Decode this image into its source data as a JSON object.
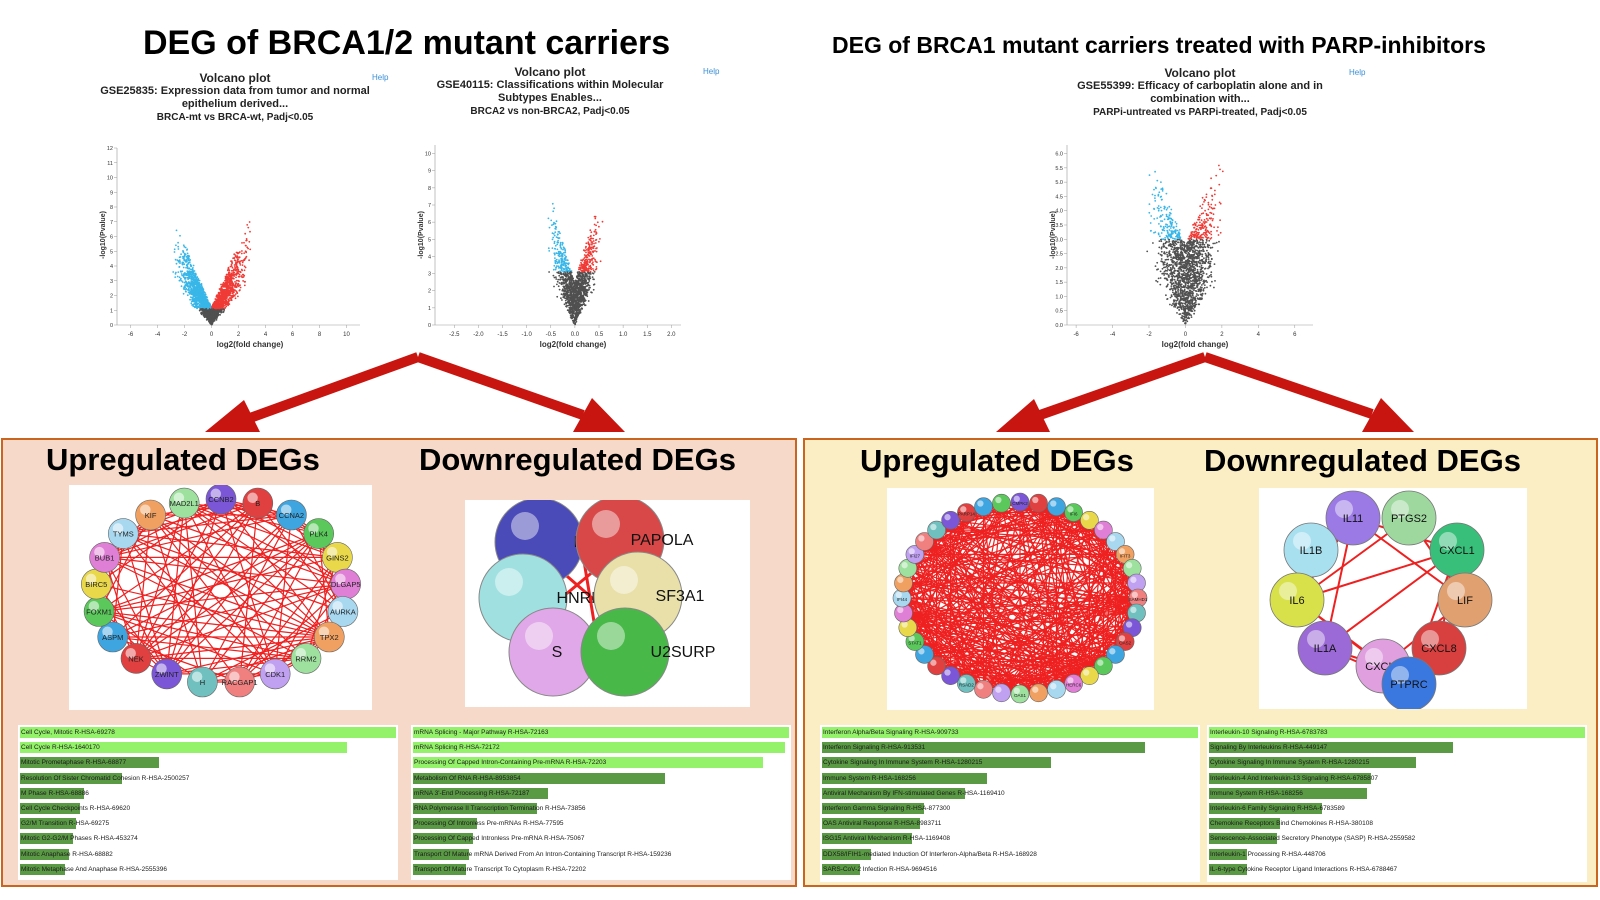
{
  "titles": {
    "left": "DEG of BRCA1/2 mutant carriers",
    "right": "DEG of BRCA1 mutant carriers treated with PARP-inhibitors"
  },
  "volcano_plots": [
    {
      "line1": "Volcano plot",
      "line2": "GSE25835: Expression data from tumor and normal epithelium derived...",
      "line3": "BRCA-mt vs BRCA-wt, Padj<0.05",
      "help": "Help",
      "xlabel": "log2(fold change)",
      "ylabel": "-log10(Pvalue)",
      "xticks": [
        "-6",
        "-4",
        "-2",
        "0",
        "2",
        "4",
        "6",
        "8",
        "10"
      ],
      "yticks": [
        "0",
        "1",
        "2",
        "3",
        "4",
        "5",
        "6",
        "7",
        "8",
        "9",
        "10",
        "11",
        "12"
      ]
    },
    {
      "line1": "Volcano plot",
      "line2": "GSE40115: Classifications within Molecular Subtypes Enables...",
      "line3": "BRCA2 vs non-BRCA2, Padj<0.05",
      "help": "Help",
      "xlabel": "log2(fold change)",
      "ylabel": "-log10(Pvalue)",
      "xticks": [
        "-2.5",
        "-2.0",
        "-1.5",
        "-1.0",
        "-0.5",
        "0.0",
        "0.5",
        "1.0",
        "1.5",
        "2.0"
      ],
      "yticks": [
        "0",
        "1",
        "2",
        "3",
        "4",
        "5",
        "6",
        "7",
        "8",
        "9",
        "10"
      ]
    },
    {
      "line1": "Volcano plot",
      "line2": "GSE55399: Efficacy of carboplatin alone and in combination with...",
      "line3": "PARPi-untreated vs PARPi-treated, Padj<0.05",
      "help": "Help",
      "xlabel": "log2(fold change)",
      "ylabel": "-log10(Pvalue)",
      "xticks": [
        "-6",
        "-4",
        "-2",
        "0",
        "2",
        "4",
        "6"
      ],
      "yticks": [
        "0.0",
        "0.5",
        "1.0",
        "1.5",
        "2.0",
        "2.5",
        "3.0",
        "3.5",
        "4.0",
        "4.5",
        "5.0",
        "5.5",
        "6.0"
      ]
    }
  ],
  "sections": {
    "left": {
      "up": "Upregulated DEGs",
      "down": "Downregulated DEGs"
    },
    "right": {
      "up": "Upregulated DEGs",
      "down": "Downregulated DEGs"
    }
  },
  "networks": {
    "left_up": [
      "CCNB2",
      "B",
      "CCNA2",
      "PLK4",
      "GINS2",
      "DLGAP5",
      "AURKA",
      "TPX2",
      "RRM2",
      "CDK1",
      "RACGAP1",
      "H",
      "ZWINT",
      "NEK",
      "ASPM",
      "FOXM1",
      "BIRC5",
      "BUB1",
      "TYMS",
      "KIF",
      "MAD2L1"
    ],
    "left_down": [
      "P",
      "PAPOLA",
      "HNRNP",
      "SF3A1",
      "S",
      "U2SURP"
    ],
    "right_up": [
      "CMPK2",
      "IFI6",
      "IFIT3",
      "SAMHD1",
      "OAS2",
      "HERC6",
      "OAS1",
      "RSAD2",
      "STAT1",
      "IFI44",
      "IFI27",
      "PARP14"
    ],
    "right_down": [
      "IL11",
      "PTGS2",
      "IL1B",
      "CXCL1",
      "IL6",
      "LIF",
      "IL1A",
      "CXCL8",
      "CXCL2",
      "PTPRC"
    ]
  },
  "colors": {
    "panel_left_bg": "#f6d9c8",
    "panel_right_bg": "#fbeec5",
    "panel_border": "#c9651e",
    "arrow": "#c9150f",
    "volcano_down": "#38b6e8",
    "volcano_up": "#ef3b36",
    "volcano_ns": "#505050",
    "bar_light": "#94f26a",
    "bar_dark": "#5a9a44",
    "edge": "#ee2020"
  },
  "enrichment": {
    "left_up": [
      {
        "label": "Cell Cycle, Mitotic R-HSA-69278",
        "value": 1.0,
        "shade": "light"
      },
      {
        "label": "Cell Cycle R-HSA-1640170",
        "value": 0.87,
        "shade": "light"
      },
      {
        "label": "Mitotic Prometaphase R-HSA-68877",
        "value": 0.37,
        "shade": "dark"
      },
      {
        "label": "Resolution Of Sister Chromatid Cohesion R-HSA-2500257",
        "value": 0.27,
        "shade": "dark"
      },
      {
        "label": "M Phase R-HSA-68886",
        "value": 0.17,
        "shade": "dark"
      },
      {
        "label": "Cell Cycle Checkpoints R-HSA-69620",
        "value": 0.16,
        "shade": "dark"
      },
      {
        "label": "G2/M Transition R-HSA-69275",
        "value": 0.15,
        "shade": "dark"
      },
      {
        "label": "Mitotic G2-G2/M Phases R-HSA-453274",
        "value": 0.14,
        "shade": "dark"
      },
      {
        "label": "Mitotic Anaphase R-HSA-68882",
        "value": 0.13,
        "shade": "dark"
      },
      {
        "label": "Mitotic Metaphase And Anaphase R-HSA-2555396",
        "value": 0.12,
        "shade": "dark"
      }
    ],
    "left_down": [
      {
        "label": "mRNA Splicing - Major Pathway R-HSA-72163",
        "value": 1.0,
        "shade": "light"
      },
      {
        "label": "mRNA Splicing R-HSA-72172",
        "value": 0.99,
        "shade": "light"
      },
      {
        "label": "Processing Of Capped Intron-Containing Pre-mRNA R-HSA-72203",
        "value": 0.93,
        "shade": "light"
      },
      {
        "label": "Metabolism Of RNA R-HSA-8953854",
        "value": 0.67,
        "shade": "dark"
      },
      {
        "label": "mRNA 3'-End Processing R-HSA-72187",
        "value": 0.36,
        "shade": "dark"
      },
      {
        "label": "RNA Polymerase II Transcription Termination R-HSA-73856",
        "value": 0.33,
        "shade": "dark"
      },
      {
        "label": "Processing Of Intronless Pre-mRNAs R-HSA-77595",
        "value": 0.17,
        "shade": "dark"
      },
      {
        "label": "Processing Of Capped Intronless Pre-mRNA R-HSA-75067",
        "value": 0.16,
        "shade": "dark"
      },
      {
        "label": "Transport Of Mature mRNA Derived From An Intron-Containing Transcript R-HSA-159236",
        "value": 0.15,
        "shade": "dark"
      },
      {
        "label": "Transport Of Mature Transcript To Cytoplasm R-HSA-72202",
        "value": 0.14,
        "shade": "dark"
      }
    ],
    "right_up": [
      {
        "label": "Interferon Alpha/Beta Signaling R-HSA-909733",
        "value": 1.0,
        "shade": "light"
      },
      {
        "label": "Interferon Signaling R-HSA-913531",
        "value": 0.86,
        "shade": "dark"
      },
      {
        "label": "Cytokine Signaling In Immune System R-HSA-1280215",
        "value": 0.61,
        "shade": "dark"
      },
      {
        "label": "Immune System R-HSA-168256",
        "value": 0.44,
        "shade": "dark"
      },
      {
        "label": "Antiviral Mechanism By IFN-stimulated Genes R-HSA-1169410",
        "value": 0.38,
        "shade": "dark"
      },
      {
        "label": "Interferon Gamma Signaling R-HSA-877300",
        "value": 0.27,
        "shade": "dark"
      },
      {
        "label": "OAS Antiviral Response R-HSA-8983711",
        "value": 0.26,
        "shade": "dark"
      },
      {
        "label": "ISG15 Antiviral Mechanism R-HSA-1169408",
        "value": 0.24,
        "shade": "dark"
      },
      {
        "label": "DDX58/IFIH1-mediated Induction Of Interferon-Alpha/Beta R-HSA-168928",
        "value": 0.13,
        "shade": "dark"
      },
      {
        "label": "SARS-CoV-2 Infection R-HSA-9694516",
        "value": 0.1,
        "shade": "dark"
      }
    ],
    "right_down": [
      {
        "label": "Interleukin-10 Signaling R-HSA-6783783",
        "value": 1.0,
        "shade": "light"
      },
      {
        "label": "Signaling By Interleukins R-HSA-449147",
        "value": 0.65,
        "shade": "dark"
      },
      {
        "label": "Cytokine Signaling In Immune System R-HSA-1280215",
        "value": 0.55,
        "shade": "dark"
      },
      {
        "label": "Interleukin-4 And Interleukin-13 Signaling R-HSA-6785807",
        "value": 0.43,
        "shade": "dark"
      },
      {
        "label": "Immune System R-HSA-168256",
        "value": 0.42,
        "shade": "dark"
      },
      {
        "label": "Interleukin-6 Family Signaling R-HSA-6783589",
        "value": 0.3,
        "shade": "dark"
      },
      {
        "label": "Chemokine Receptors Bind Chemokines R-HSA-380108",
        "value": 0.19,
        "shade": "dark"
      },
      {
        "label": "Senescence-Associated Secretory Phenotype (SASP) R-HSA-2559582",
        "value": 0.18,
        "shade": "dark"
      },
      {
        "label": "Interleukin-1 Processing R-HSA-448706",
        "value": 0.1,
        "shade": "dark"
      },
      {
        "label": "IL-6-type Cytokine Receptor Ligand Interactions R-HSA-6788467",
        "value": 0.1,
        "shade": "dark"
      }
    ]
  }
}
